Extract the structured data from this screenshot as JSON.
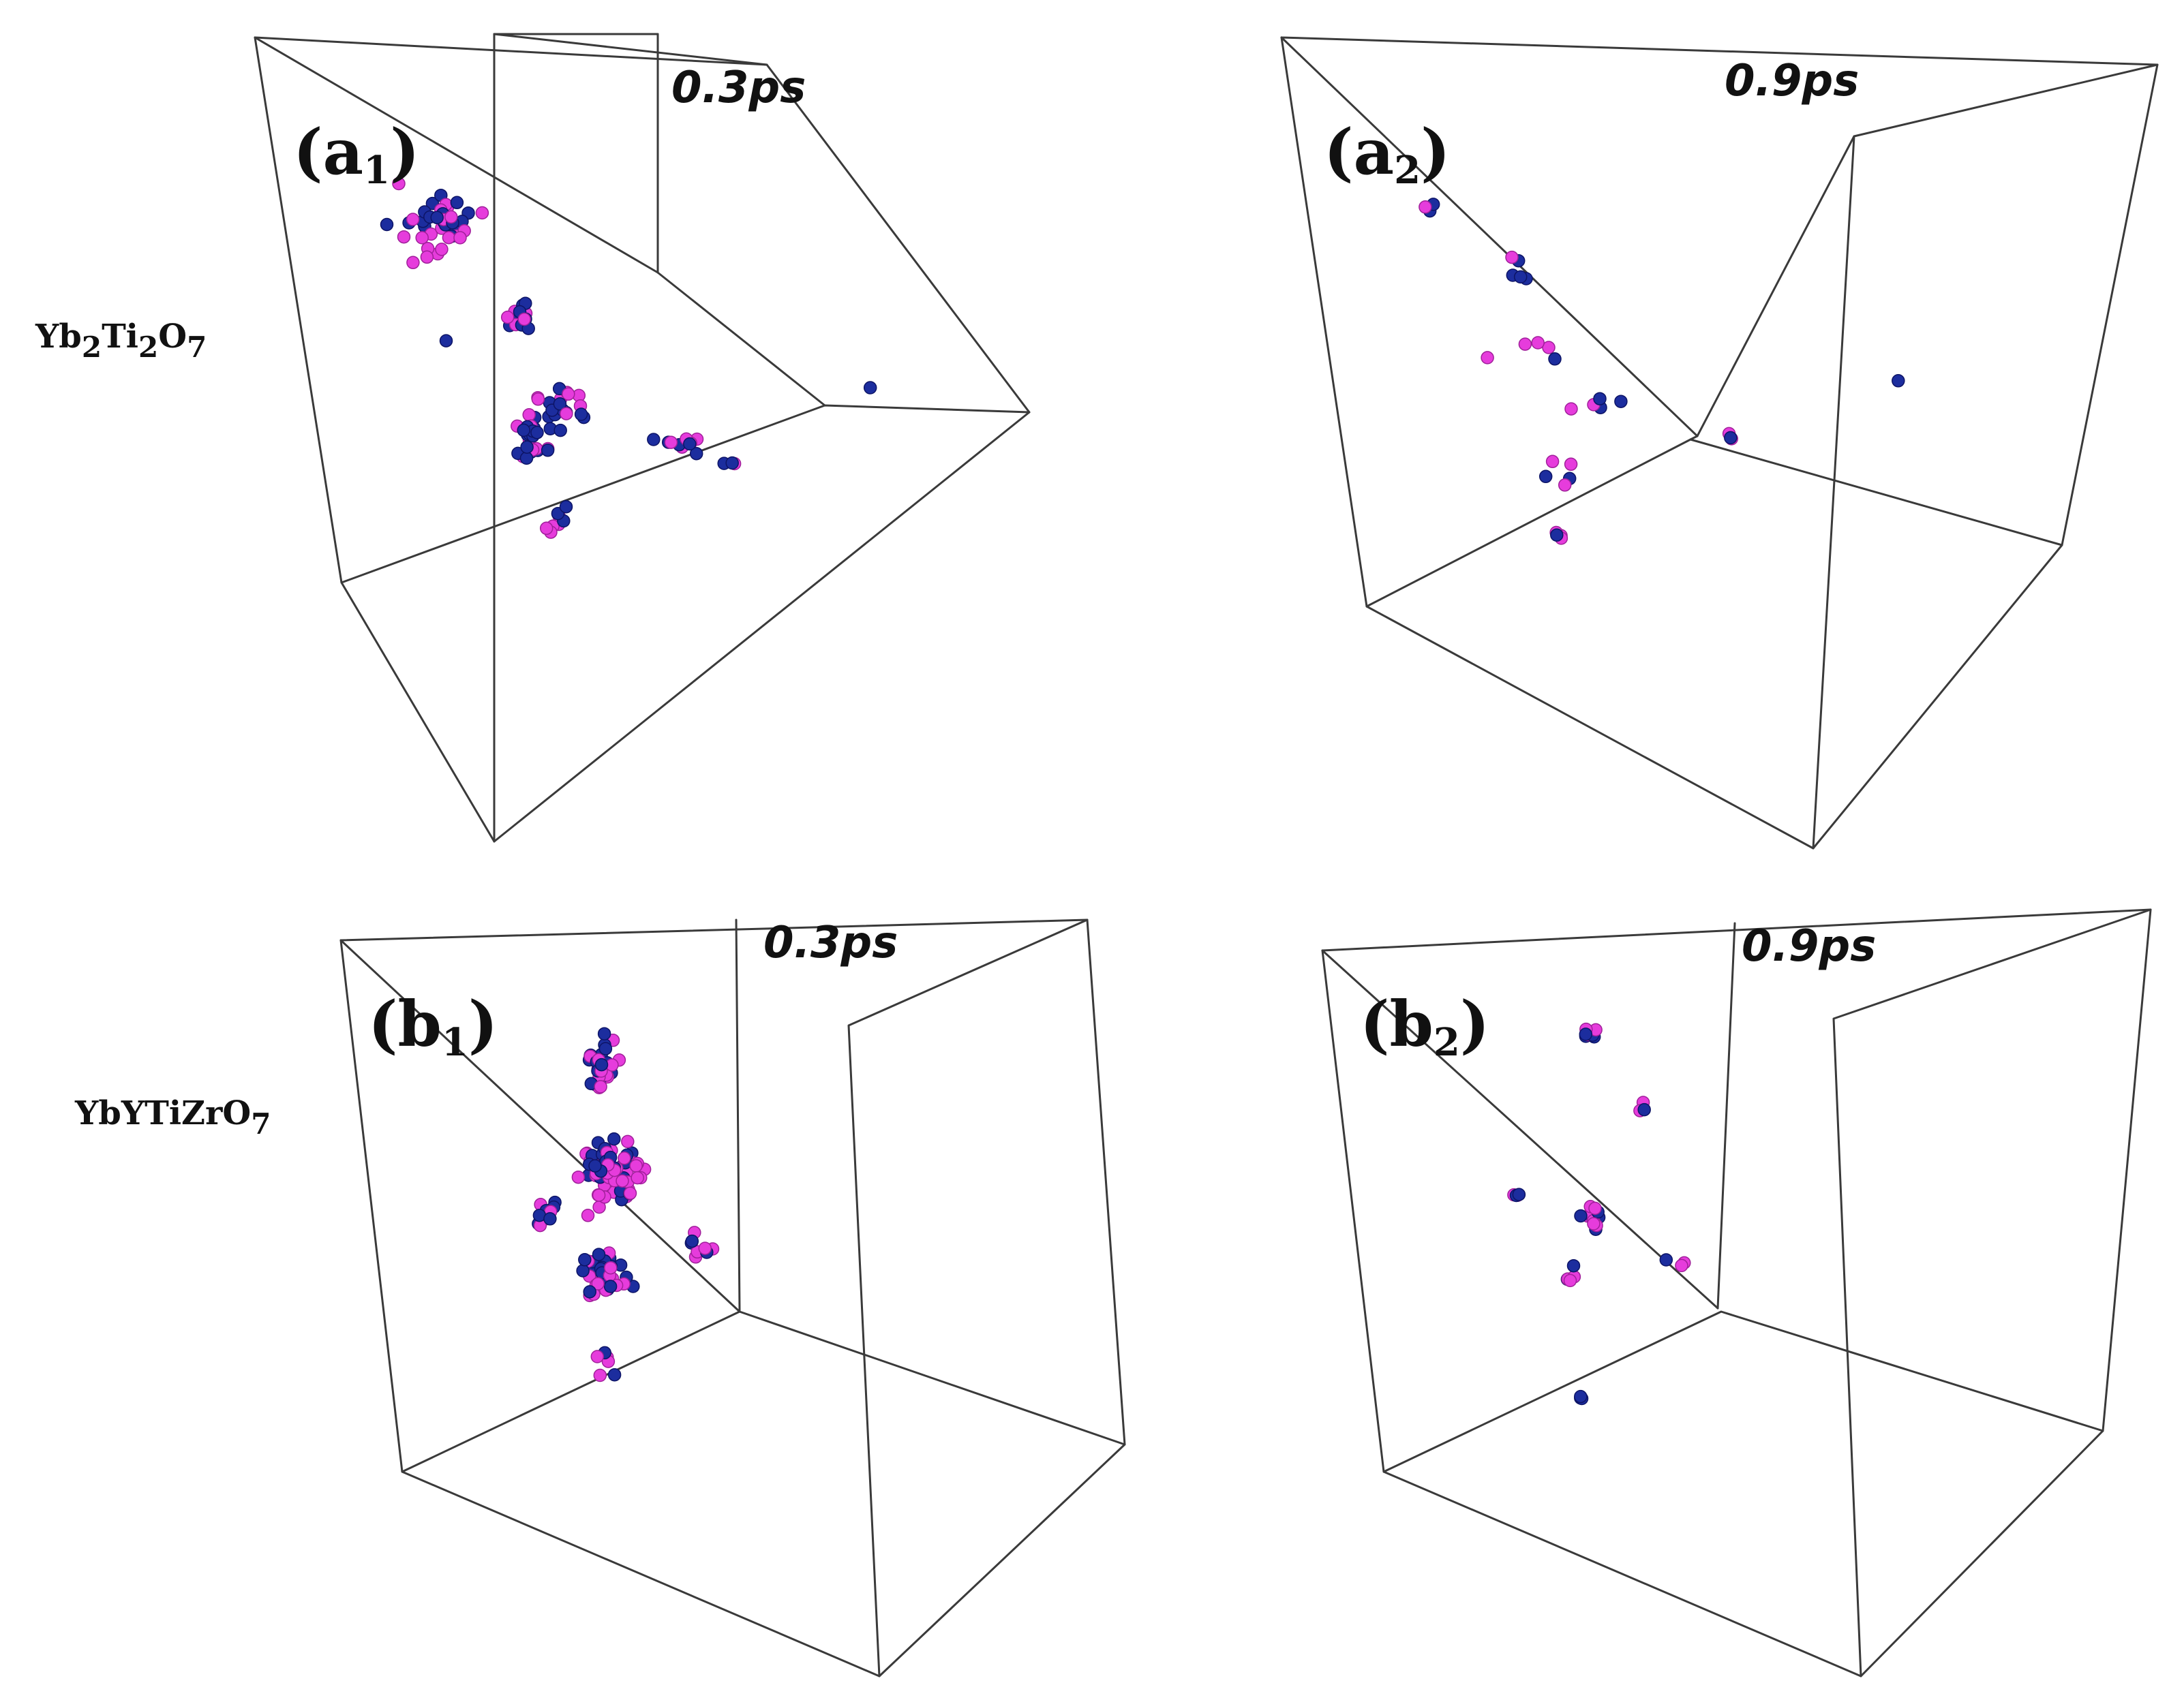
{
  "row_labels": {
    "a": {
      "p1": "Yb",
      "s1": "2",
      "p2": "Ti",
      "s2": "2",
      "p3": "O",
      "s3": "7"
    },
    "b": {
      "p1": "YbYTiZrO",
      "s1": "7"
    }
  },
  "panels": [
    {
      "id": "a1",
      "label_prefix": "(a",
      "label_sub": "1",
      "label_suffix": ")",
      "time": "0.3ps"
    },
    {
      "id": "a2",
      "label_prefix": "(a",
      "label_sub": "2",
      "label_suffix": ")",
      "time": "0.9ps"
    },
    {
      "id": "b1",
      "label_prefix": "(b",
      "label_sub": "1",
      "label_suffix": ")",
      "time": "0.3ps"
    },
    {
      "id": "b2",
      "label_prefix": "(b",
      "label_sub": "2",
      "label_suffix": ")",
      "time": "0.9ps"
    }
  ],
  "colors": {
    "species_1": "#1c2d9e",
    "species_2": "#e63cdc",
    "box_edges": "#3a3a3a"
  }
}
